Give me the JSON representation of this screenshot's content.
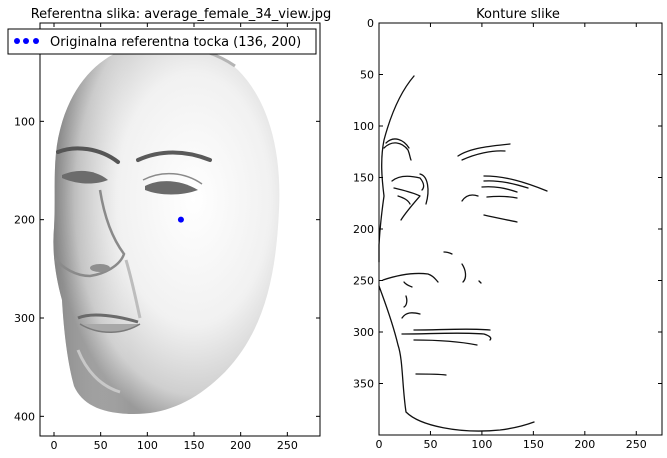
{
  "chart_data": [
    {
      "type": "image",
      "title": "Referentna slika: average_female_34_view.jpg",
      "xlim": [
        -15,
        285
      ],
      "ylim": [
        420,
        0
      ],
      "x_ticks": [
        0,
        50,
        100,
        150,
        200,
        250
      ],
      "y_ticks": [
        100,
        200,
        300,
        400
      ],
      "legend": {
        "location": "top-left",
        "entries": [
          {
            "label": "Originalna referentna tocka (136, 200)",
            "marker": "dot",
            "color": "#0000ff"
          }
        ]
      },
      "points": [
        {
          "x": 136,
          "y": 200,
          "color": "#0000ff"
        }
      ]
    },
    {
      "type": "image",
      "title": "Konture slike",
      "xlim": [
        0,
        275
      ],
      "ylim": [
        400,
        0
      ],
      "x_ticks": [
        0,
        50,
        100,
        150,
        200,
        250
      ],
      "y_ticks": [
        0,
        50,
        100,
        150,
        200,
        250,
        300,
        350
      ]
    }
  ]
}
